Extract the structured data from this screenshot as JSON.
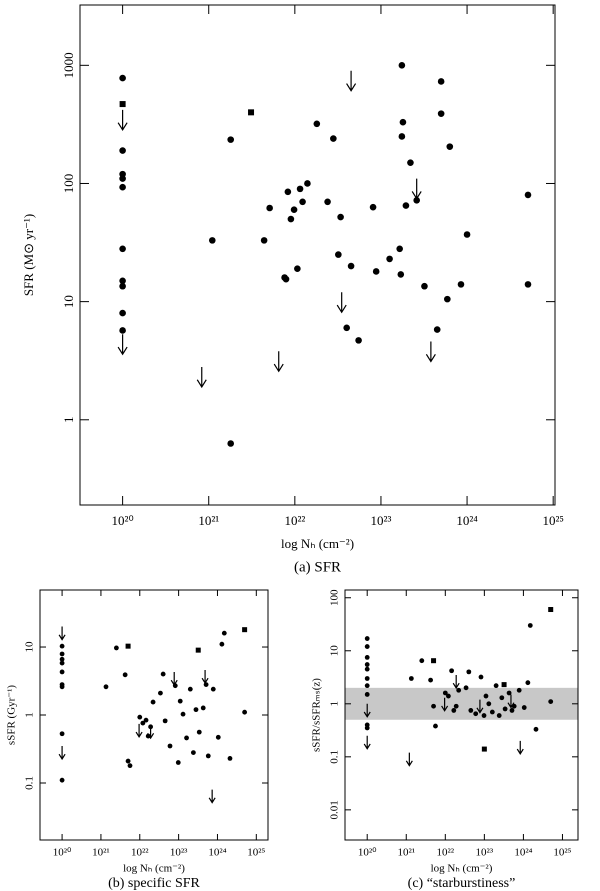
{
  "chart_data": [
    {
      "type": "scatter",
      "caption": "(a) SFR",
      "xlabel": "log Nₕ (cm⁻²)",
      "ylabel": "SFR (M⊙ yr⁻¹)",
      "xscale": "log",
      "yscale": "log",
      "xlim": [
        3.2e+19,
        1.05e+25
      ],
      "ylim": [
        0.19,
        3240
      ],
      "xticks": [
        {
          "value": 1e+20,
          "label": "10²⁰"
        },
        {
          "value": 1e+21,
          "label": "10²¹"
        },
        {
          "value": 1e+22,
          "label": "10²²"
        },
        {
          "value": 1e+23,
          "label": "10²³"
        },
        {
          "value": 1e+24,
          "label": "10²⁴"
        },
        {
          "value": 1e+25,
          "label": "10²⁵"
        }
      ],
      "yticks": [
        1,
        10,
        100,
        1000
      ],
      "series": [
        {
          "marker": "circle",
          "color": "#000000",
          "x": [
            1e+20,
            1e+20,
            1e+20,
            1e+20,
            1e+20,
            1e+20,
            1e+20,
            1e+20,
            1e+20,
            1e+20,
            1.1e+21,
            1.8e+21,
            1.8e+21,
            4.4e+21,
            5.1e+21,
            7.6e+21,
            7.9e+21,
            8.3e+21,
            9e+21,
            9.8e+21,
            1.07e+22,
            1.15e+22,
            1.23e+22,
            1.4e+22,
            1.8e+22,
            2.4e+22,
            2.8e+22,
            3.4e+22,
            3.2e+22,
            4e+22,
            4.5e+22,
            5.5e+22,
            8.1e+22,
            8.8e+22,
            1.26e+23,
            1.65e+23,
            1.7e+23,
            1.75e+23,
            1.75e+23,
            1.8e+23,
            1.95e+23,
            2.2e+23,
            2.6e+23,
            3.2e+23,
            4.5e+23,
            5e+23,
            5e+23,
            5.9e+23,
            6.3e+23,
            8.5e+23,
            1e+24,
            5.1e+24,
            5.1e+24
          ],
          "values": [
            780,
            190,
            120,
            110,
            93,
            28,
            15,
            13.5,
            8,
            5.7,
            33,
            235,
            0.63,
            33,
            62,
            16,
            15.5,
            85,
            50,
            60,
            19,
            90,
            70,
            100,
            320,
            70,
            240,
            52,
            25,
            6,
            20,
            4.7,
            63,
            18,
            23,
            28,
            17,
            1000,
            250,
            330,
            65,
            150,
            72,
            13.5,
            5.8,
            390,
            730,
            10.5,
            205,
            14,
            37,
            80,
            14
          ]
        },
        {
          "marker": "square",
          "color": "#000000",
          "x": [
            1e+20,
            3.1e+21
          ],
          "values": [
            470,
            400
          ]
        },
        {
          "marker": "arrow",
          "color": "#000000",
          "x": [
            1e+20,
            1e+20,
            4.5e+22,
            2.6e+23,
            3.5e+22,
            6.5e+21,
            8.3e+20,
            3.8e+23
          ],
          "values": [
            420,
            5.3,
            900,
            110,
            12,
            3.8,
            2.8,
            4.6
          ]
        }
      ]
    },
    {
      "type": "scatter",
      "caption": "(b) specific SFR",
      "xlabel": "log Nₕ (cm⁻²)",
      "ylabel": "sSFR (Gyr⁻¹)",
      "xscale": "log",
      "yscale": "log",
      "xlim": [
        2.7e+19,
        2e+25
      ],
      "ylim": [
        0.0145,
        69
      ],
      "xticks": [
        {
          "value": 1e+20,
          "label": "10²⁰"
        },
        {
          "value": 1e+21,
          "label": "10²¹"
        },
        {
          "value": 1e+22,
          "label": "10²²"
        },
        {
          "value": 1e+23,
          "label": "10²³"
        },
        {
          "value": 1e+24,
          "label": "10²⁴"
        },
        {
          "value": 1e+25,
          "label": "10²⁵"
        }
      ],
      "yticks": [
        0.1,
        1,
        10
      ],
      "series": [
        {
          "marker": "circle",
          "color": "#000000",
          "x": [
            1e+20,
            1e+20,
            1e+20,
            1e+20,
            1e+20,
            1e+20,
            1e+20,
            1e+20,
            1e+20,
            1.35e+21,
            2.5e+21,
            4.2e+21,
            5e+21,
            5.6e+21,
            1e+22,
            1.2e+22,
            1.45e+22,
            1.65e+22,
            1.9e+22,
            2.2e+22,
            3.4e+22,
            4e+22,
            4.5e+22,
            6e+22,
            8.2e+22,
            9.8e+22,
            1.1e+23,
            1.3e+23,
            1.6e+23,
            2e+23,
            2.4e+23,
            2.8e+23,
            3.4e+23,
            4.3e+23,
            5.1e+23,
            5.8e+23,
            7.8e+23,
            1.05e+24,
            1.3e+24,
            1.5e+24,
            2.1e+24,
            5e+24
          ],
          "values": [
            10.3,
            7.9,
            6.6,
            5.8,
            4.3,
            2.8,
            2.6,
            0.53,
            0.11,
            2.6,
            9.7,
            3.9,
            0.21,
            0.18,
            0.93,
            0.76,
            0.84,
            0.49,
            0.67,
            1.55,
            2.1,
            4,
            0.82,
            0.35,
            2.7,
            0.2,
            1.6,
            1.03,
            0.46,
            2.4,
            0.28,
            1.2,
            0.56,
            1.27,
            2.8,
            0.25,
            2.4,
            0.47,
            11,
            16,
            0.23,
            1.1
          ]
        },
        {
          "marker": "square",
          "color": "#000000",
          "x": [
            5e+21,
            3.2e+23,
            5e+24
          ],
          "values": [
            10.3,
            9,
            18
          ]
        },
        {
          "marker": "arrow",
          "color": "#000000",
          "x": [
            1e+20,
            1e+20,
            9.6e+21,
            1.9e+22,
            7.7e+22,
            4.8e+23,
            7.3e+23
          ],
          "values": [
            20,
            0.35,
            0.74,
            0.71,
            4.3,
            4.6,
            0.08
          ]
        }
      ]
    },
    {
      "type": "scatter",
      "caption": "(c) “starburstiness”",
      "xlabel": "log Nₕ (cm⁻²)",
      "ylabel": "sSFR/sSFRₘₛ(z)",
      "xscale": "log",
      "yscale": "log",
      "xlim": [
        2.7e+19,
        2.5e+25
      ],
      "ylim": [
        0.0027,
        140
      ],
      "band": [
        0.5,
        2
      ],
      "band_color": "#c8c8c8",
      "xticks": [
        {
          "value": 1e+20,
          "label": "10²⁰"
        },
        {
          "value": 1e+21,
          "label": "10²¹"
        },
        {
          "value": 1e+22,
          "label": "10²²"
        },
        {
          "value": 1e+23,
          "label": "10²³"
        },
        {
          "value": 1e+24,
          "label": "10²⁴"
        },
        {
          "value": 1e+25,
          "label": "10²⁵"
        }
      ],
      "yticks": [
        0.01,
        0.1,
        1,
        10,
        100
      ],
      "series": [
        {
          "marker": "circle",
          "color": "#000000",
          "x": [
            1e+20,
            1e+20,
            1e+20,
            1e+20,
            1e+20,
            1e+20,
            1e+20,
            1e+20,
            1e+20,
            1e+20,
            1.35e+21,
            2.5e+21,
            4.2e+21,
            5e+21,
            5.6e+21,
            1e+22,
            1.2e+22,
            1.45e+22,
            1.65e+22,
            1.9e+22,
            2.2e+22,
            3.4e+22,
            4e+22,
            4.5e+22,
            6e+22,
            8.2e+22,
            9.8e+22,
            1.1e+23,
            1.3e+23,
            1.6e+23,
            2e+23,
            2.4e+23,
            2.8e+23,
            3.4e+23,
            4.3e+23,
            5.1e+23,
            5.8e+23,
            7.8e+23,
            1.05e+24,
            1.3e+24,
            1.5e+24,
            2.1e+24,
            5e+24
          ],
          "values": [
            17,
            12,
            7.5,
            5.5,
            4.5,
            3,
            2.2,
            1.5,
            0.4,
            0.35,
            3,
            6.5,
            2.8,
            0.9,
            0.38,
            1.6,
            1.4,
            4.2,
            0.75,
            0.9,
            1.8,
            2,
            4,
            0.75,
            0.65,
            3.2,
            0.6,
            1.4,
            1,
            0.7,
            2.2,
            0.6,
            1.3,
            0.8,
            1.6,
            0.75,
            0.9,
            1.8,
            0.85,
            2.5,
            30,
            0.33,
            1.1
          ]
        },
        {
          "marker": "square",
          "color": "#000000",
          "x": [
            5e+21,
            1e+23,
            3.2e+23,
            5e+24
          ],
          "values": [
            6.5,
            0.14,
            2.3,
            60
          ]
        },
        {
          "marker": "arrow",
          "color": "#000000",
          "x": [
            1e+20,
            1e+20,
            1.2e+21,
            9.6e+21,
            1.9e+22,
            7.7e+22,
            4.8e+23,
            8.3e+23
          ],
          "values": [
            1,
            0.25,
            0.12,
            1.3,
            3.5,
            1.2,
            1.5,
            0.2
          ]
        }
      ]
    }
  ]
}
